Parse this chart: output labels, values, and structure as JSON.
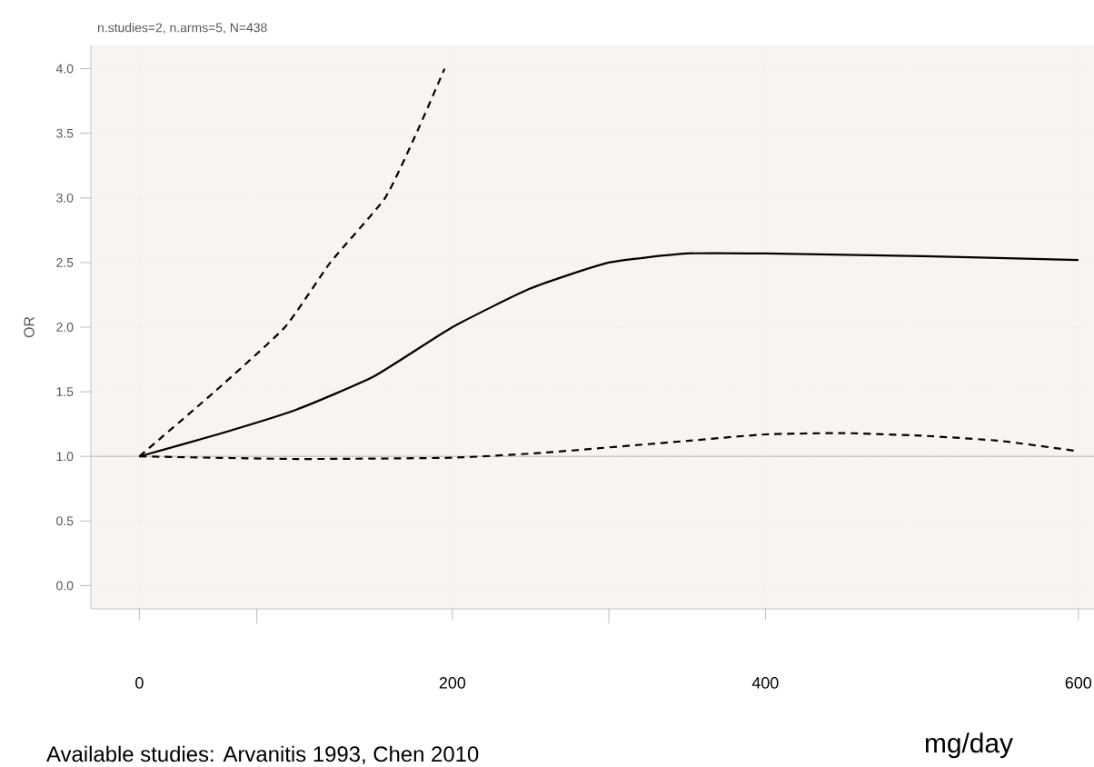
{
  "chart_data": {
    "type": "line",
    "title": "n.studies=2, n.arms=5, N=438",
    "xlabel": "mg/day",
    "ylabel": "OR",
    "annotations": [
      "Available studies: Arvanitis 1993, Chen 2010"
    ],
    "series": [
      {
        "color": "#000000",
        "line_style": "solid",
        "x": [
          0,
          50,
          100,
          150,
          200,
          250,
          300,
          350,
          400,
          500,
          600
        ],
        "values": [
          1.0,
          1.17,
          1.36,
          1.62,
          2.0,
          2.3,
          2.5,
          2.57,
          2.57,
          2.55,
          2.52
        ]
      },
      {
        "color": "#000000",
        "line_style": "dashed",
        "x": [
          0,
          48,
          93,
          122,
          157,
          177,
          195
        ],
        "values": [
          1.0,
          1.5,
          2.0,
          2.5,
          3.0,
          3.5,
          4.0
        ]
      },
      {
        "color": "#000000",
        "line_style": "dashed",
        "x": [
          0,
          100,
          200,
          260,
          350,
          400,
          450,
          500,
          550,
          600
        ],
        "values": [
          1.0,
          0.98,
          0.99,
          1.03,
          1.12,
          1.17,
          1.18,
          1.16,
          1.12,
          1.04
        ]
      }
    ],
    "xlim": [
      -31,
      610
    ],
    "ylim": [
      -0.18,
      4.18
    ],
    "xticks": [
      0,
      {
        "value": 75,
        "label": null
      },
      200,
      {
        "value": 300,
        "label": null
      },
      400,
      600
    ],
    "yticks": [
      {
        "value": 0,
        "label": "0.0"
      },
      0.5,
      {
        "value": 1,
        "label": "1.0"
      },
      1.5,
      {
        "value": 2,
        "label": "2.0"
      },
      2.5,
      {
        "value": 3,
        "label": "3.0"
      },
      3.5,
      {
        "value": 4,
        "label": "4.0"
      }
    ],
    "ref_lines": [
      {
        "axis": "y",
        "value": 1,
        "color": "#cfc8c0"
      }
    ],
    "grid": true
  }
}
